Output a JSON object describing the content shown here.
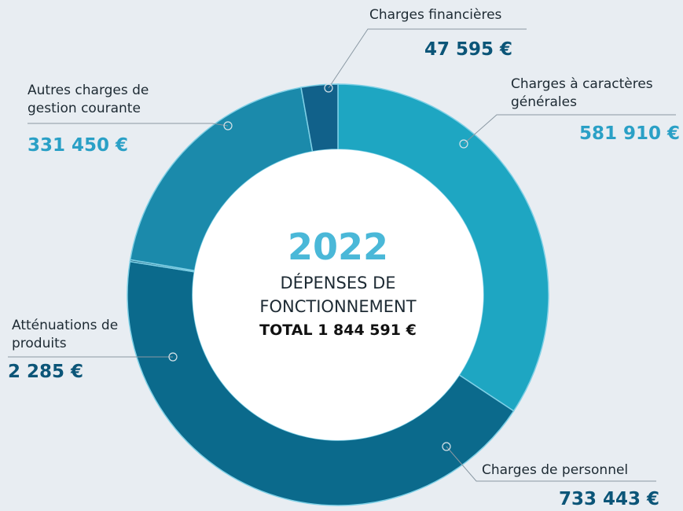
{
  "chart_data": {
    "type": "donut",
    "categories": [
      "Charges à caractères générales",
      "Charges de personnel",
      "Atténuations de produits",
      "Autres charges de gestion courante",
      "Charges financières"
    ],
    "values": [
      581910,
      733443,
      2285,
      331450,
      47595
    ],
    "value_labels": [
      "581 910 €",
      "733 443 €",
      "2 285 €",
      "331 450 €",
      "47 595 €"
    ],
    "colors": [
      "#1ea6c2",
      "#0b6a8c",
      "#0b4e6c",
      "#1b8aab",
      "#11618a"
    ],
    "center_title": "2022",
    "center_lines": [
      "DÉPENSES DE",
      "FONCTIONNEMENT"
    ],
    "center_total": "TOTAL 1 844 591 €"
  }
}
